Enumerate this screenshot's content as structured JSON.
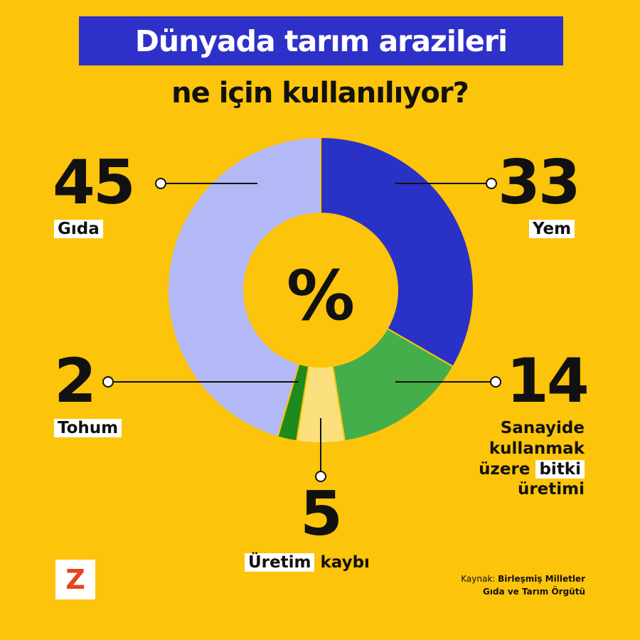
{
  "title": "Dünyada tarım arazileri",
  "subtitle": "ne için kullanılıyor?",
  "chart_data": {
    "type": "pie",
    "center_label": "%",
    "slices": [
      {
        "label": "Yem",
        "value": 33,
        "color": "#2A31C6"
      },
      {
        "label": "Sanayide kullanmak üzere bitki üretimi",
        "value": 14,
        "color": "#44AE4A"
      },
      {
        "label": "Üretim kaybı",
        "value": 5,
        "color": "#FCE07D"
      },
      {
        "label": "Tohum",
        "value": 2,
        "color": "#1E8A1E"
      },
      {
        "label": "Gıda",
        "value": 45,
        "color": "#B3B8F6"
      }
    ]
  },
  "labels": {
    "gida": {
      "value": "45",
      "text": "Gıda"
    },
    "yem": {
      "value": "33",
      "text": "Yem"
    },
    "tohum": {
      "value": "2",
      "text": "Tohum"
    },
    "sanayi": {
      "value": "14",
      "line1": "Sanayide",
      "line2": "kullanmak",
      "line3_a": "üzere",
      "line3_b": "bitki",
      "line4": "üretimi"
    },
    "kayip": {
      "value": "5",
      "word1": "Üretim",
      "word2": "kaybı"
    }
  },
  "source": {
    "prefix": "Kaynak:",
    "line1": "Birleşmiş Milletler",
    "line2": "Gıda ve Tarım Örgütü"
  },
  "logo": {
    "letter": "Z"
  }
}
